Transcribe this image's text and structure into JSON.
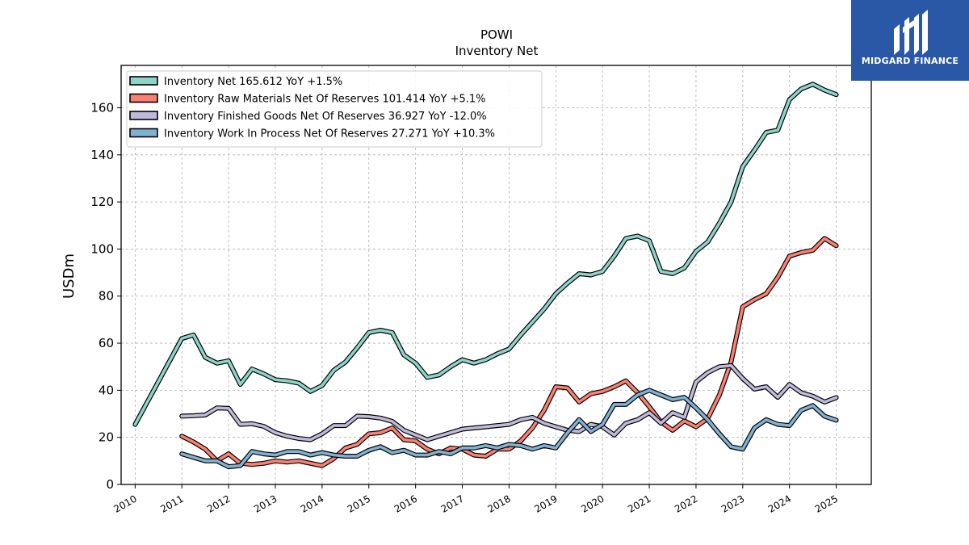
{
  "brand": {
    "name": "MIDGARD FINANCE",
    "color": "#2b57a7"
  },
  "chart_data": {
    "type": "line",
    "title": "POWI",
    "subtitle": "Inventory Net",
    "ylabel": "USDm",
    "xlabel": "",
    "xlim": [
      2009.7,
      2025.75
    ],
    "ylim": [
      0,
      178
    ],
    "grid": true,
    "legend_position": "top-left",
    "x_ticks": [
      "2010",
      "2011",
      "2012",
      "2013",
      "2014",
      "2015",
      "2016",
      "2017",
      "2018",
      "2019",
      "2020",
      "2021",
      "2022",
      "2023",
      "2024",
      "2025"
    ],
    "y_ticks": [
      0,
      20,
      40,
      60,
      80,
      100,
      120,
      140,
      160
    ],
    "series": [
      {
        "name": "Inventory Net",
        "legend_label": "Inventory Net  165.612 YoY +1.5%",
        "color": "#8dd3c7",
        "points": [
          [
            2010.0,
            25.5
          ],
          [
            2011.0,
            62
          ],
          [
            2011.25,
            63.5
          ],
          [
            2011.5,
            54
          ],
          [
            2011.75,
            51.5
          ],
          [
            2012.0,
            52.5
          ],
          [
            2012.25,
            42.5
          ],
          [
            2012.5,
            49
          ],
          [
            2012.75,
            47
          ],
          [
            2013.0,
            44.5
          ],
          [
            2013.25,
            44
          ],
          [
            2013.5,
            43
          ],
          [
            2013.75,
            39.5
          ],
          [
            2014.0,
            42
          ],
          [
            2014.25,
            48.5
          ],
          [
            2014.5,
            52
          ],
          [
            2014.75,
            58
          ],
          [
            2015.0,
            64.5
          ],
          [
            2015.25,
            65.5
          ],
          [
            2015.5,
            64.5
          ],
          [
            2015.75,
            55
          ],
          [
            2016.0,
            51.5
          ],
          [
            2016.25,
            45.5
          ],
          [
            2016.5,
            46.5
          ],
          [
            2016.75,
            50
          ],
          [
            2017.0,
            53
          ],
          [
            2017.25,
            51.5
          ],
          [
            2017.5,
            53
          ],
          [
            2017.75,
            55.5
          ],
          [
            2018.0,
            57.5
          ],
          [
            2018.25,
            63.5
          ],
          [
            2018.5,
            69
          ],
          [
            2018.75,
            74.5
          ],
          [
            2019.0,
            81
          ],
          [
            2019.25,
            85.5
          ],
          [
            2019.5,
            89.5
          ],
          [
            2019.75,
            89
          ],
          [
            2020.0,
            90.5
          ],
          [
            2020.25,
            97
          ],
          [
            2020.5,
            104.5
          ],
          [
            2020.75,
            105.5
          ],
          [
            2021.0,
            103.5
          ],
          [
            2021.25,
            90.5
          ],
          [
            2021.5,
            89.5
          ],
          [
            2021.75,
            92
          ],
          [
            2022.0,
            99
          ],
          [
            2022.25,
            103
          ],
          [
            2022.5,
            111
          ],
          [
            2022.75,
            120
          ],
          [
            2023.0,
            135
          ],
          [
            2023.25,
            142
          ],
          [
            2023.5,
            149.5
          ],
          [
            2023.75,
            150.5
          ],
          [
            2024.0,
            163.5
          ],
          [
            2024.25,
            168
          ],
          [
            2024.5,
            170
          ],
          [
            2024.75,
            167.5
          ],
          [
            2025.0,
            165.6
          ]
        ]
      },
      {
        "name": "Inventory Raw Materials Net Of Reserves",
        "legend_label": "Inventory Raw Materials Net Of Reserves  101.414 YoY +5.1%",
        "color": "#fb8072",
        "points": [
          [
            2011.0,
            20.5
          ],
          [
            2011.25,
            18
          ],
          [
            2011.5,
            15
          ],
          [
            2011.75,
            10
          ],
          [
            2012.0,
            13
          ],
          [
            2012.25,
            9
          ],
          [
            2012.5,
            8.5
          ],
          [
            2012.75,
            9
          ],
          [
            2013.0,
            10
          ],
          [
            2013.25,
            9.5
          ],
          [
            2013.5,
            10
          ],
          [
            2013.75,
            9
          ],
          [
            2014.0,
            8
          ],
          [
            2014.25,
            11
          ],
          [
            2014.5,
            15.5
          ],
          [
            2014.75,
            17
          ],
          [
            2015.0,
            21.5
          ],
          [
            2015.25,
            22
          ],
          [
            2015.5,
            24
          ],
          [
            2015.75,
            19
          ],
          [
            2016.0,
            18.5
          ],
          [
            2016.25,
            15
          ],
          [
            2016.5,
            13
          ],
          [
            2016.75,
            15.5
          ],
          [
            2017.0,
            15
          ],
          [
            2017.25,
            12.5
          ],
          [
            2017.5,
            12
          ],
          [
            2017.75,
            15
          ],
          [
            2018.0,
            15
          ],
          [
            2018.25,
            18.5
          ],
          [
            2018.5,
            24
          ],
          [
            2018.75,
            31.5
          ],
          [
            2019.0,
            41.5
          ],
          [
            2019.25,
            41
          ],
          [
            2019.5,
            35
          ],
          [
            2019.75,
            38.5
          ],
          [
            2020.0,
            39.5
          ],
          [
            2020.25,
            41.5
          ],
          [
            2020.5,
            44
          ],
          [
            2020.75,
            39
          ],
          [
            2021.0,
            33
          ],
          [
            2021.25,
            26.5
          ],
          [
            2021.5,
            23
          ],
          [
            2021.75,
            27
          ],
          [
            2022.0,
            24.5
          ],
          [
            2022.25,
            28
          ],
          [
            2022.5,
            38
          ],
          [
            2022.75,
            52
          ],
          [
            2023.0,
            75.5
          ],
          [
            2023.25,
            78.5
          ],
          [
            2023.5,
            81
          ],
          [
            2023.75,
            88
          ],
          [
            2024.0,
            97
          ],
          [
            2024.25,
            98.5
          ],
          [
            2024.5,
            99.5
          ],
          [
            2024.75,
            104.5
          ],
          [
            2025.0,
            101.4
          ]
        ]
      },
      {
        "name": "Inventory Finished Goods Net Of Reserves",
        "legend_label": "Inventory Finished Goods Net Of Reserves  36.927 YoY -12.0%",
        "color": "#bebada",
        "points": [
          [
            2011.0,
            29
          ],
          [
            2011.25,
            29.2
          ],
          [
            2011.5,
            29.5
          ],
          [
            2011.75,
            32.5
          ],
          [
            2012.0,
            32.3
          ],
          [
            2012.25,
            25.5
          ],
          [
            2012.5,
            25.8
          ],
          [
            2012.75,
            24.7
          ],
          [
            2013.0,
            22
          ],
          [
            2013.25,
            20.5
          ],
          [
            2013.5,
            19.5
          ],
          [
            2013.75,
            19
          ],
          [
            2014.0,
            21.5
          ],
          [
            2014.25,
            25
          ],
          [
            2014.5,
            25
          ],
          [
            2014.75,
            29
          ],
          [
            2015.0,
            28.8
          ],
          [
            2015.25,
            28.2
          ],
          [
            2015.5,
            26.8
          ],
          [
            2015.75,
            23
          ],
          [
            2016.0,
            21
          ],
          [
            2016.25,
            19
          ],
          [
            2016.5,
            20.5
          ],
          [
            2016.75,
            22
          ],
          [
            2017.0,
            23.5
          ],
          [
            2017.25,
            24
          ],
          [
            2017.5,
            24.5
          ],
          [
            2017.75,
            25
          ],
          [
            2018.0,
            25.5
          ],
          [
            2018.25,
            27.5
          ],
          [
            2018.5,
            28.5
          ],
          [
            2018.75,
            26
          ],
          [
            2019.0,
            24.5
          ],
          [
            2019.25,
            23
          ],
          [
            2019.5,
            22.5
          ],
          [
            2019.75,
            25.5
          ],
          [
            2020.0,
            24.5
          ],
          [
            2020.25,
            21
          ],
          [
            2020.5,
            26
          ],
          [
            2020.75,
            27.5
          ],
          [
            2021.0,
            30.5
          ],
          [
            2021.25,
            26
          ],
          [
            2021.5,
            30.5
          ],
          [
            2021.75,
            28.5
          ],
          [
            2022.0,
            43.5
          ],
          [
            2022.25,
            47.5
          ],
          [
            2022.5,
            50
          ],
          [
            2022.75,
            50.5
          ],
          [
            2023.0,
            45
          ],
          [
            2023.25,
            40.5
          ],
          [
            2023.5,
            41.5
          ],
          [
            2023.75,
            37
          ],
          [
            2024.0,
            42.5
          ],
          [
            2024.25,
            39
          ],
          [
            2024.5,
            37.5
          ],
          [
            2024.75,
            35
          ],
          [
            2025.0,
            36.9
          ]
        ]
      },
      {
        "name": "Inventory Work In Process Net Of Reserves",
        "legend_label": "Inventory Work In Process Net Of Reserves  27.271 YoY +10.3%",
        "color": "#80b1d3",
        "points": [
          [
            2011.0,
            13
          ],
          [
            2011.25,
            11.5
          ],
          [
            2011.5,
            10
          ],
          [
            2011.75,
            10
          ],
          [
            2012.0,
            7.5
          ],
          [
            2012.25,
            8
          ],
          [
            2012.5,
            14
          ],
          [
            2012.75,
            13
          ],
          [
            2013.0,
            12.5
          ],
          [
            2013.25,
            14
          ],
          [
            2013.5,
            14
          ],
          [
            2013.75,
            12.5
          ],
          [
            2014.0,
            13.5
          ],
          [
            2014.25,
            12.5
          ],
          [
            2014.5,
            12
          ],
          [
            2014.75,
            12
          ],
          [
            2015.0,
            14.5
          ],
          [
            2015.25,
            16
          ],
          [
            2015.5,
            13.5
          ],
          [
            2015.75,
            14.5
          ],
          [
            2016.0,
            12.5
          ],
          [
            2016.25,
            12.5
          ],
          [
            2016.5,
            14
          ],
          [
            2016.75,
            13
          ],
          [
            2017.0,
            15.5
          ],
          [
            2017.25,
            15.5
          ],
          [
            2017.5,
            16.5
          ],
          [
            2017.75,
            15.5
          ],
          [
            2018.0,
            17
          ],
          [
            2018.25,
            16.5
          ],
          [
            2018.5,
            15
          ],
          [
            2018.75,
            16.5
          ],
          [
            2019.0,
            15.5
          ],
          [
            2019.25,
            22
          ],
          [
            2019.5,
            27.5
          ],
          [
            2019.75,
            22.5
          ],
          [
            2020.0,
            25.5
          ],
          [
            2020.25,
            34
          ],
          [
            2020.5,
            34
          ],
          [
            2020.75,
            38
          ],
          [
            2021.0,
            40
          ],
          [
            2021.25,
            38
          ],
          [
            2021.5,
            36
          ],
          [
            2021.75,
            37
          ],
          [
            2022.0,
            32.5
          ],
          [
            2022.25,
            27.5
          ],
          [
            2022.5,
            21.5
          ],
          [
            2022.75,
            16
          ],
          [
            2023.0,
            15
          ],
          [
            2023.25,
            24
          ],
          [
            2023.5,
            27.5
          ],
          [
            2023.75,
            25.5
          ],
          [
            2024.0,
            25
          ],
          [
            2024.25,
            31.5
          ],
          [
            2024.5,
            33.5
          ],
          [
            2024.75,
            29
          ],
          [
            2025.0,
            27.3
          ]
        ]
      }
    ]
  }
}
